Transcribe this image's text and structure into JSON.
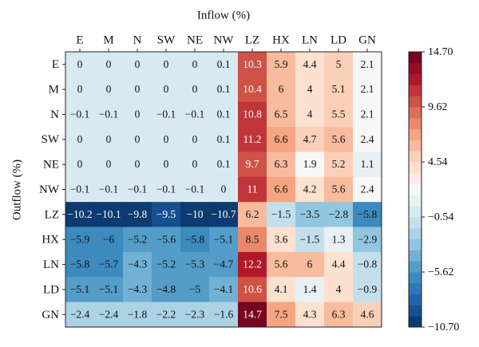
{
  "chart_data": {
    "type": "heatmap",
    "xlabel": "Inflow (%)",
    "ylabel": "Outflow (%)",
    "x_categories": [
      "E",
      "M",
      "N",
      "SW",
      "NE",
      "NW",
      "LZ",
      "HX",
      "LN",
      "LD",
      "GN"
    ],
    "y_categories": [
      "E",
      "M",
      "N",
      "SW",
      "NE",
      "NW",
      "LZ",
      "HX",
      "LN",
      "LD",
      "GN"
    ],
    "values": [
      [
        0,
        0,
        0,
        0,
        0,
        0.1,
        10.3,
        5.9,
        4.4,
        5,
        2.1
      ],
      [
        0,
        0,
        0,
        0,
        0,
        0.1,
        10.4,
        6,
        4,
        5.1,
        2.1
      ],
      [
        -0.1,
        -0.1,
        0,
        -0.1,
        -0.1,
        0.1,
        10.8,
        6.5,
        4,
        5.5,
        2.1
      ],
      [
        0,
        0,
        0,
        0,
        0,
        0.1,
        11.2,
        6.6,
        4.7,
        5.6,
        2.4
      ],
      [
        0,
        0,
        0,
        0,
        0,
        0.1,
        9.7,
        6.3,
        1.9,
        5.2,
        1.1
      ],
      [
        -0.1,
        -0.1,
        -0.1,
        -0.1,
        -0.1,
        0,
        11,
        6.6,
        4.2,
        5.6,
        2.4
      ],
      [
        -10.2,
        -10.1,
        -9.8,
        -9.5,
        -10,
        -10.7,
        6.2,
        -1.5,
        -3.5,
        -2.8,
        -5.8
      ],
      [
        -5.9,
        -6,
        -5.2,
        -5.6,
        -5.8,
        -5.1,
        8.5,
        3.6,
        -1.5,
        1.3,
        -2.9
      ],
      [
        -5.8,
        -5.7,
        -4.3,
        -5.2,
        -5.3,
        -4.7,
        12.2,
        5.6,
        6,
        4.4,
        -0.8
      ],
      [
        -5.1,
        -5.1,
        -4.3,
        -4.8,
        -5,
        -4.1,
        10.6,
        4.1,
        1.4,
        4,
        -0.9
      ],
      [
        -2.4,
        -2.4,
        -1.8,
        -2.2,
        -2.3,
        -1.6,
        14.7,
        7.5,
        4.3,
        6.3,
        4.6
      ]
    ],
    "value_labels": [
      [
        "0",
        "0",
        "0",
        "0",
        "0",
        "0.1",
        "10.3",
        "5.9",
        "4.4",
        "5",
        "2.1"
      ],
      [
        "0",
        "0",
        "0",
        "0",
        "0",
        "0.1",
        "10.4",
        "6",
        "4",
        "5.1",
        "2.1"
      ],
      [
        "−0.1",
        "−0.1",
        "0",
        "−0.1",
        "−0.1",
        "0.1",
        "10.8",
        "6.5",
        "4",
        "5.5",
        "2.1"
      ],
      [
        "0",
        "0",
        "0",
        "0",
        "0",
        "0.1",
        "11.2",
        "6.6",
        "4.7",
        "5.6",
        "2.4"
      ],
      [
        "0",
        "0",
        "0",
        "0",
        "0",
        "0.1",
        "9.7",
        "6.3",
        "1.9",
        "5.2",
        "1.1"
      ],
      [
        "−0.1",
        "−0.1",
        "−0.1",
        "−0.1",
        "−0.1",
        "0",
        "11",
        "6.6",
        "4.2",
        "5.6",
        "2.4"
      ],
      [
        "−10.2",
        "−10.1",
        "−9.8",
        "−9.5",
        "−10",
        "−10.7",
        "6.2",
        "−1.5",
        "−3.5",
        "−2.8",
        "−5.8"
      ],
      [
        "−5.9",
        "−6",
        "−5.2",
        "−5.6",
        "−5.8",
        "−5.1",
        "8.5",
        "3.6",
        "−1.5",
        "1.3",
        "−2.9"
      ],
      [
        "−5.8",
        "−5.7",
        "−4.3",
        "−5.2",
        "−5.3",
        "−4.7",
        "12.2",
        "5.6",
        "6",
        "4.4",
        "−0.8"
      ],
      [
        "−5.1",
        "−5.1",
        "−4.3",
        "−4.8",
        "−5",
        "−4.1",
        "10.6",
        "4.1",
        "1.4",
        "4",
        "−0.9"
      ],
      [
        "−2.4",
        "−2.4",
        "−1.8",
        "−2.2",
        "−2.3",
        "−1.6",
        "14.7",
        "7.5",
        "4.3",
        "6.3",
        "4.6"
      ]
    ],
    "clim": [
      -10.7,
      14.7
    ],
    "colorbar_ticks": [
      {
        "value": 14.7,
        "label": "14.70"
      },
      {
        "value": 9.62,
        "label": "9.62"
      },
      {
        "value": 4.54,
        "label": "4.54"
      },
      {
        "value": -0.54,
        "label": "−0.54"
      },
      {
        "value": -5.62,
        "label": "−5.62"
      },
      {
        "value": -10.7,
        "label": "−10.70"
      }
    ],
    "colormap": [
      "#053061",
      "#2166ac",
      "#4393c3",
      "#92c5de",
      "#d1e5f0",
      "#f7f7f7",
      "#fddbc7",
      "#f4a582",
      "#d6604d",
      "#b2182b",
      "#67001f"
    ],
    "levels": 25
  }
}
